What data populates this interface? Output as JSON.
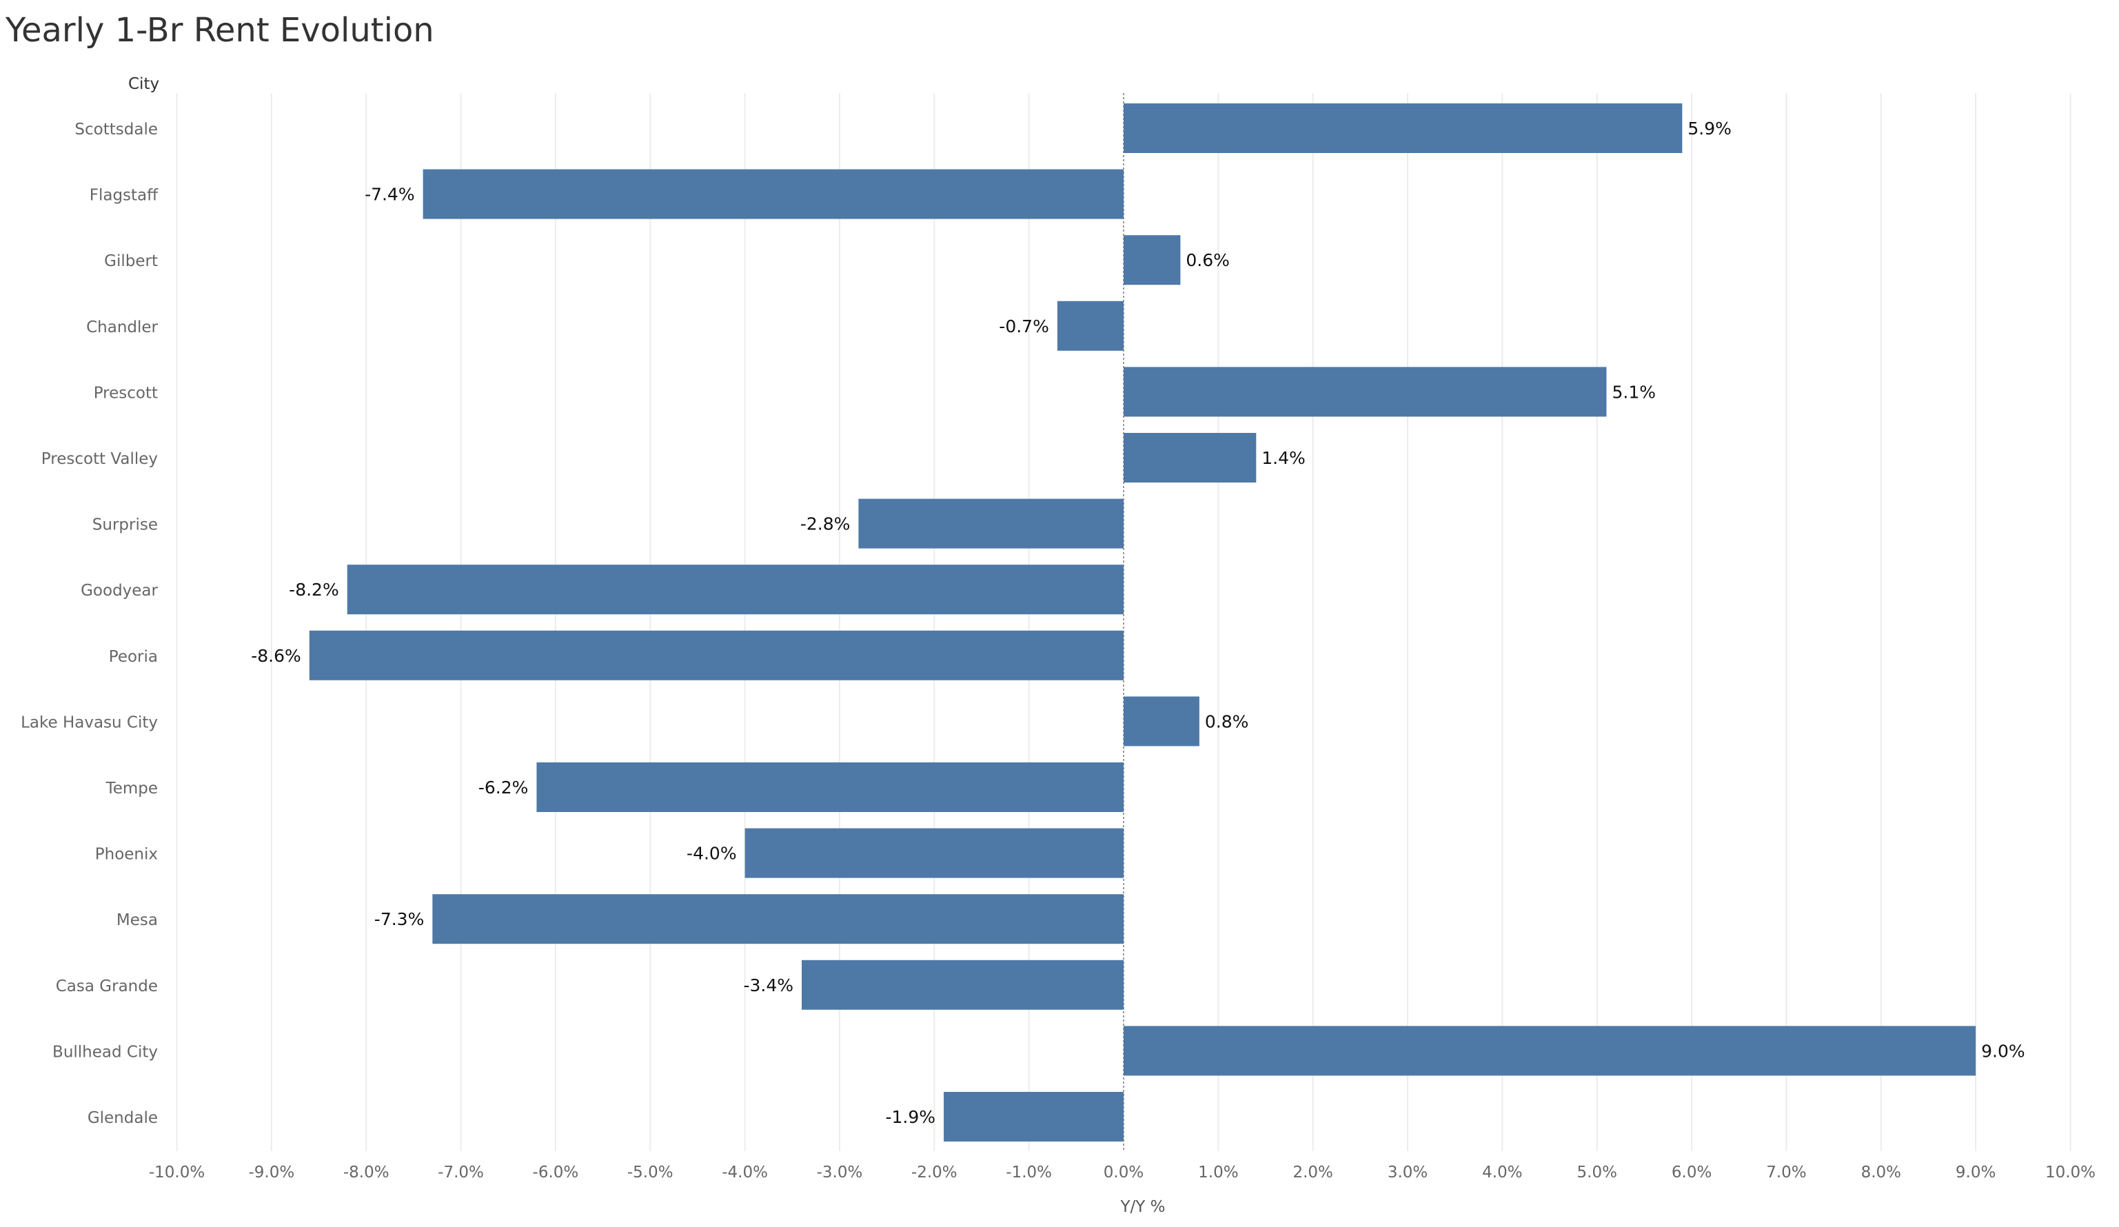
{
  "chart_data": {
    "type": "bar",
    "orientation": "horizontal",
    "title": "Yearly 1-Br Rent Evolution",
    "row_header": "City",
    "xlabel": "Y/Y %",
    "ylabel": "",
    "xlim": [
      -10,
      10
    ],
    "x_ticks": [
      -10,
      -9,
      -8,
      -7,
      -6,
      -5,
      -4,
      -3,
      -2,
      -1,
      0,
      1,
      2,
      3,
      4,
      5,
      6,
      7,
      8,
      9,
      10
    ],
    "x_tick_labels": [
      "-10.0%",
      "-9.0%",
      "-8.0%",
      "-7.0%",
      "-6.0%",
      "-5.0%",
      "-4.0%",
      "-3.0%",
      "-2.0%",
      "-1.0%",
      "0.0%",
      "1.0%",
      "2.0%",
      "3.0%",
      "4.0%",
      "5.0%",
      "6.0%",
      "7.0%",
      "8.0%",
      "9.0%",
      "10.0%"
    ],
    "grid": "vertical",
    "bar_color": "#4e79a7",
    "categories": [
      "Scottsdale",
      "Flagstaff",
      "Gilbert",
      "Chandler",
      "Prescott",
      "Prescott Valley",
      "Surprise",
      "Goodyear",
      "Peoria",
      "Lake Havasu City",
      "Tempe",
      "Phoenix",
      "Mesa",
      "Casa Grande",
      "Bullhead City",
      "Glendale"
    ],
    "values": [
      5.9,
      -7.4,
      0.6,
      -0.7,
      5.1,
      1.4,
      -2.8,
      -8.2,
      -8.6,
      0.8,
      -6.2,
      -4.0,
      -7.3,
      -3.4,
      9.0,
      -1.9
    ],
    "data_labels": [
      "5.9%",
      "-7.4%",
      "0.6%",
      "-0.7%",
      "5.1%",
      "1.4%",
      "-2.8%",
      "-8.2%",
      "-8.6%",
      "0.8%",
      "-6.2%",
      "-4.0%",
      "-7.3%",
      "-3.4%",
      "9.0%",
      "-1.9%"
    ]
  }
}
